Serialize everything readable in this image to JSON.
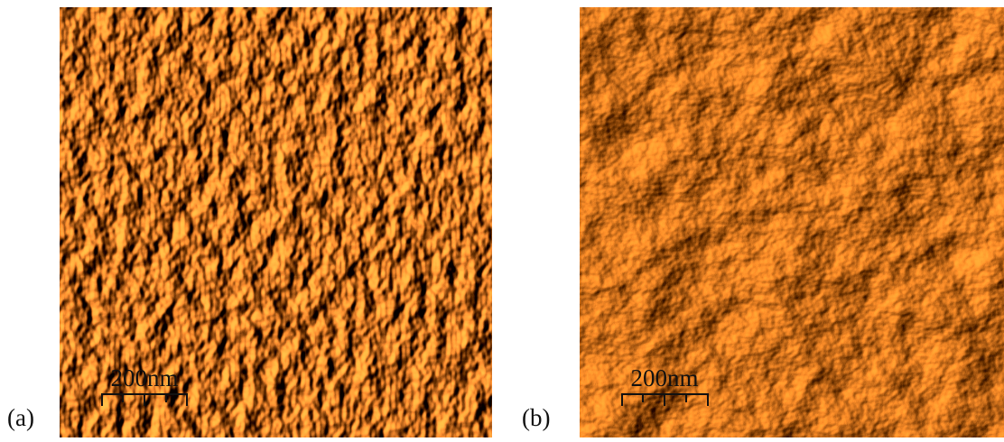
{
  "panels": [
    {
      "label": "(a)",
      "scale_bar": "200nm"
    },
    {
      "label": "(b)",
      "scale_bar": "200nm"
    }
  ]
}
